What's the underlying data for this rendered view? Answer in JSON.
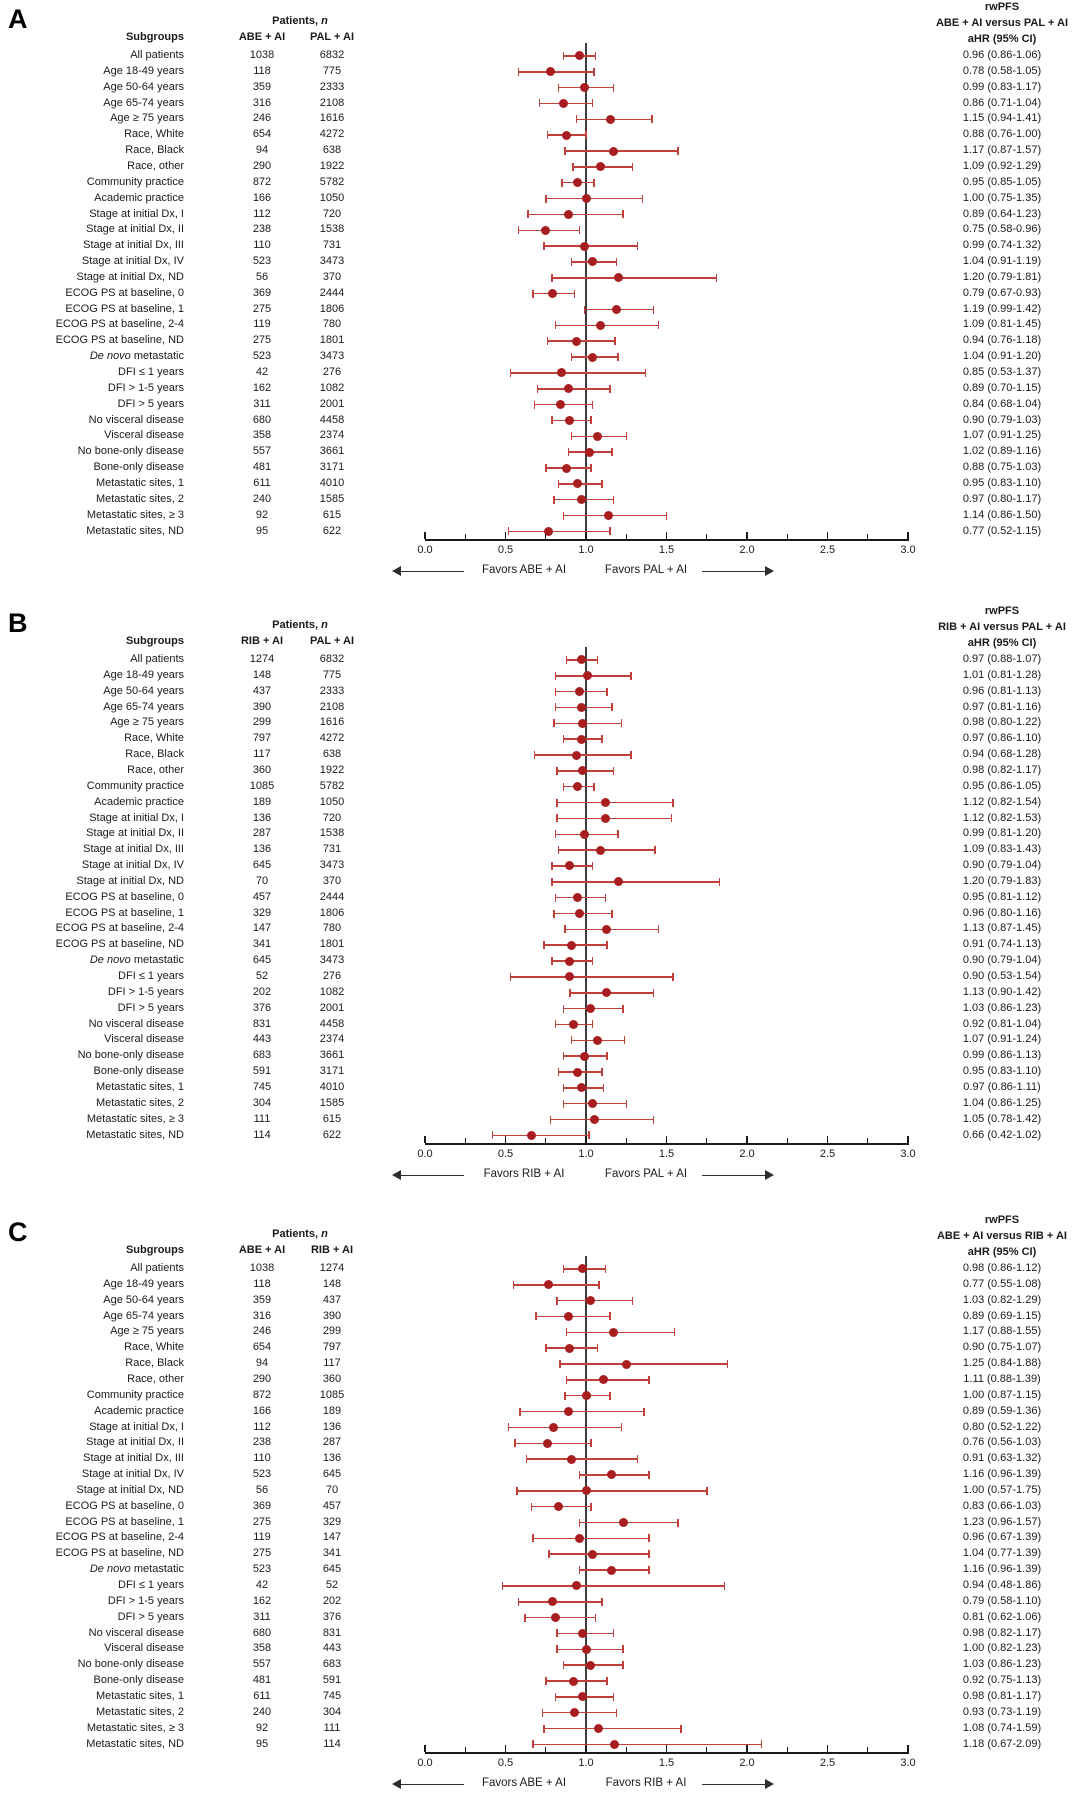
{
  "figure_title": "Forest plots of rwPFS subgroup analyses",
  "colors": {
    "marker": "#a81e20",
    "ci_line": "#c2403a",
    "reference_line": "#3c3c3c",
    "axis": "#1a1a1a",
    "text": "#1a1a1a",
    "arrow": "#2e2e2e"
  },
  "shared_headers": {
    "patients_n_prefix": "Patients, ",
    "patients_n_italic": "n",
    "subgroups": "Subgroups",
    "italic_phrase": "De novo"
  },
  "chart_data": {
    "type": "forest",
    "x_axis": {
      "label": "aHR",
      "min": 0.0,
      "max": 3.0,
      "major_ticks": [
        0.0,
        0.5,
        1.0,
        1.5,
        2.0,
        2.5,
        3.0
      ],
      "tick_labels": [
        "0.0",
        "0.5",
        "1.0",
        "1.5",
        "2.0",
        "2.5",
        "3.0"
      ],
      "minor_tick_step": 0.25,
      "reference_value": 1.0,
      "grid": false
    },
    "row_fields": [
      "subgroup",
      "n_arm1",
      "n_arm2",
      "aHR",
      "ci_low",
      "ci_high"
    ],
    "panels": [
      {
        "label": "A",
        "arm1": "ABE + AI",
        "arm2": "PAL + AI",
        "title_lines": [
          "rwPFS",
          "ABE + AI versus PAL + AI",
          "aHR (95% CI)"
        ],
        "favors_left": "Favors ABE + AI",
        "favors_right": "Favors PAL + AI",
        "rows": [
          [
            "All patients",
            1038,
            6832,
            0.96,
            0.86,
            1.06
          ],
          [
            "Age 18-49 years",
            118,
            775,
            0.78,
            0.58,
            1.05
          ],
          [
            "Age 50-64 years",
            359,
            2333,
            0.99,
            0.83,
            1.17
          ],
          [
            "Age 65-74 years",
            316,
            2108,
            0.86,
            0.71,
            1.04
          ],
          [
            "Age ≥ 75 years",
            246,
            1616,
            1.15,
            0.94,
            1.41
          ],
          [
            "Race, White",
            654,
            4272,
            0.88,
            0.76,
            1.0
          ],
          [
            "Race, Black",
            94,
            638,
            1.17,
            0.87,
            1.57
          ],
          [
            "Race, other",
            290,
            1922,
            1.09,
            0.92,
            1.29
          ],
          [
            "Community practice",
            872,
            5782,
            0.95,
            0.85,
            1.05
          ],
          [
            "Academic practice",
            166,
            1050,
            1.0,
            0.75,
            1.35
          ],
          [
            "Stage at initial Dx, I",
            112,
            720,
            0.89,
            0.64,
            1.23
          ],
          [
            "Stage at initial Dx, II",
            238,
            1538,
            0.75,
            0.58,
            0.96
          ],
          [
            "Stage at initial Dx, III",
            110,
            731,
            0.99,
            0.74,
            1.32
          ],
          [
            "Stage at initial Dx, IV",
            523,
            3473,
            1.04,
            0.91,
            1.19
          ],
          [
            "Stage at initial Dx, ND",
            56,
            370,
            1.2,
            0.79,
            1.81
          ],
          [
            "ECOG PS at baseline, 0",
            369,
            2444,
            0.79,
            0.67,
            0.93
          ],
          [
            "ECOG PS at baseline, 1",
            275,
            1806,
            1.19,
            0.99,
            1.42
          ],
          [
            "ECOG PS at baseline, 2-4",
            119,
            780,
            1.09,
            0.81,
            1.45
          ],
          [
            "ECOG PS at baseline, ND",
            275,
            1801,
            0.94,
            0.76,
            1.18
          ],
          [
            "De novo metastatic",
            523,
            3473,
            1.04,
            0.91,
            1.2
          ],
          [
            "DFI ≤ 1 years",
            42,
            276,
            0.85,
            0.53,
            1.37
          ],
          [
            "DFI > 1-5 years",
            162,
            1082,
            0.89,
            0.7,
            1.15
          ],
          [
            "DFI > 5 years",
            311,
            2001,
            0.84,
            0.68,
            1.04
          ],
          [
            "No visceral disease",
            680,
            4458,
            0.9,
            0.79,
            1.03
          ],
          [
            "Visceral disease",
            358,
            2374,
            1.07,
            0.91,
            1.25
          ],
          [
            "No bone-only disease",
            557,
            3661,
            1.02,
            0.89,
            1.16
          ],
          [
            "Bone-only disease",
            481,
            3171,
            0.88,
            0.75,
            1.03
          ],
          [
            "Metastatic sites, 1",
            611,
            4010,
            0.95,
            0.83,
            1.1
          ],
          [
            "Metastatic sites, 2",
            240,
            1585,
            0.97,
            0.8,
            1.17
          ],
          [
            "Metastatic sites, ≥ 3",
            92,
            615,
            1.14,
            0.86,
            1.5
          ],
          [
            "Metastatic sites, ND",
            95,
            622,
            0.77,
            0.52,
            1.15
          ]
        ]
      },
      {
        "label": "B",
        "arm1": "RIB + AI",
        "arm2": "PAL + AI",
        "title_lines": [
          "rwPFS",
          "RIB + AI versus PAL + AI",
          "aHR (95% CI)"
        ],
        "favors_left": "Favors RIB + AI",
        "favors_right": "Favors PAL + AI",
        "rows": [
          [
            "All patients",
            1274,
            6832,
            0.97,
            0.88,
            1.07
          ],
          [
            "Age 18-49 years",
            148,
            775,
            1.01,
            0.81,
            1.28
          ],
          [
            "Age 50-64 years",
            437,
            2333,
            0.96,
            0.81,
            1.13
          ],
          [
            "Age 65-74 years",
            390,
            2108,
            0.97,
            0.81,
            1.16
          ],
          [
            "Age ≥ 75 years",
            299,
            1616,
            0.98,
            0.8,
            1.22
          ],
          [
            "Race, White",
            797,
            4272,
            0.97,
            0.86,
            1.1
          ],
          [
            "Race, Black",
            117,
            638,
            0.94,
            0.68,
            1.28
          ],
          [
            "Race, other",
            360,
            1922,
            0.98,
            0.82,
            1.17
          ],
          [
            "Community practice",
            1085,
            5782,
            0.95,
            0.86,
            1.05
          ],
          [
            "Academic practice",
            189,
            1050,
            1.12,
            0.82,
            1.54
          ],
          [
            "Stage at initial Dx, I",
            136,
            720,
            1.12,
            0.82,
            1.53
          ],
          [
            "Stage at initial Dx, II",
            287,
            1538,
            0.99,
            0.81,
            1.2
          ],
          [
            "Stage at initial Dx, III",
            136,
            731,
            1.09,
            0.83,
            1.43
          ],
          [
            "Stage at initial Dx, IV",
            645,
            3473,
            0.9,
            0.79,
            1.04
          ],
          [
            "Stage at initial Dx, ND",
            70,
            370,
            1.2,
            0.79,
            1.83
          ],
          [
            "ECOG PS at baseline, 0",
            457,
            2444,
            0.95,
            0.81,
            1.12
          ],
          [
            "ECOG PS at baseline, 1",
            329,
            1806,
            0.96,
            0.8,
            1.16
          ],
          [
            "ECOG PS at baseline, 2-4",
            147,
            780,
            1.13,
            0.87,
            1.45
          ],
          [
            "ECOG PS at baseline, ND",
            341,
            1801,
            0.91,
            0.74,
            1.13
          ],
          [
            "De novo metastatic",
            645,
            3473,
            0.9,
            0.79,
            1.04
          ],
          [
            "DFI ≤ 1 years",
            52,
            276,
            0.9,
            0.53,
            1.54
          ],
          [
            "DFI > 1-5 years",
            202,
            1082,
            1.13,
            0.9,
            1.42
          ],
          [
            "DFI > 5 years",
            376,
            2001,
            1.03,
            0.86,
            1.23
          ],
          [
            "No visceral disease",
            831,
            4458,
            0.92,
            0.81,
            1.04
          ],
          [
            "Visceral disease",
            443,
            2374,
            1.07,
            0.91,
            1.24
          ],
          [
            "No bone-only disease",
            683,
            3661,
            0.99,
            0.86,
            1.13
          ],
          [
            "Bone-only disease",
            591,
            3171,
            0.95,
            0.83,
            1.1
          ],
          [
            "Metastatic sites, 1",
            745,
            4010,
            0.97,
            0.86,
            1.11
          ],
          [
            "Metastatic sites, 2",
            304,
            1585,
            1.04,
            0.86,
            1.25
          ],
          [
            "Metastatic sites, ≥ 3",
            111,
            615,
            1.05,
            0.78,
            1.42
          ],
          [
            "Metastatic sites, ND",
            114,
            622,
            0.66,
            0.42,
            1.02
          ]
        ]
      },
      {
        "label": "C",
        "arm1": "ABE + AI",
        "arm2": "RIB + AI",
        "title_lines": [
          "rwPFS",
          "ABE + AI versus RIB + AI",
          "aHR (95% CI)"
        ],
        "favors_left": "Favors ABE + AI",
        "favors_right": "Favors RIB + AI",
        "rows": [
          [
            "All patients",
            1038,
            1274,
            0.98,
            0.86,
            1.12
          ],
          [
            "Age 18-49 years",
            118,
            148,
            0.77,
            0.55,
            1.08
          ],
          [
            "Age 50-64 years",
            359,
            437,
            1.03,
            0.82,
            1.29
          ],
          [
            "Age 65-74 years",
            316,
            390,
            0.89,
            0.69,
            1.15
          ],
          [
            "Age ≥ 75 years",
            246,
            299,
            1.17,
            0.88,
            1.55
          ],
          [
            "Race, White",
            654,
            797,
            0.9,
            0.75,
            1.07
          ],
          [
            "Race, Black",
            94,
            117,
            1.25,
            0.84,
            1.88
          ],
          [
            "Race, other",
            290,
            360,
            1.11,
            0.88,
            1.39
          ],
          [
            "Community practice",
            872,
            1085,
            1.0,
            0.87,
            1.15
          ],
          [
            "Academic practice",
            166,
            189,
            0.89,
            0.59,
            1.36
          ],
          [
            "Stage at initial Dx, I",
            112,
            136,
            0.8,
            0.52,
            1.22
          ],
          [
            "Stage at initial Dx, II",
            238,
            287,
            0.76,
            0.56,
            1.03
          ],
          [
            "Stage at initial Dx, III",
            110,
            136,
            0.91,
            0.63,
            1.32
          ],
          [
            "Stage at initial Dx, IV",
            523,
            645,
            1.16,
            0.96,
            1.39
          ],
          [
            "Stage at initial Dx, ND",
            56,
            70,
            1.0,
            0.57,
            1.75
          ],
          [
            "ECOG PS at baseline, 0",
            369,
            457,
            0.83,
            0.66,
            1.03
          ],
          [
            "ECOG PS at baseline, 1",
            275,
            329,
            1.23,
            0.96,
            1.57
          ],
          [
            "ECOG PS at baseline, 2-4",
            119,
            147,
            0.96,
            0.67,
            1.39
          ],
          [
            "ECOG PS at baseline, ND",
            275,
            341,
            1.04,
            0.77,
            1.39
          ],
          [
            "De novo metastatic",
            523,
            645,
            1.16,
            0.96,
            1.39
          ],
          [
            "DFI ≤ 1 years",
            42,
            52,
            0.94,
            0.48,
            1.86
          ],
          [
            "DFI > 1-5 years",
            162,
            202,
            0.79,
            0.58,
            1.1
          ],
          [
            "DFI > 5 years",
            311,
            376,
            0.81,
            0.62,
            1.06
          ],
          [
            "No visceral disease",
            680,
            831,
            0.98,
            0.82,
            1.17
          ],
          [
            "Visceral disease",
            358,
            443,
            1.0,
            0.82,
            1.23
          ],
          [
            "No bone-only disease",
            557,
            683,
            1.03,
            0.86,
            1.23
          ],
          [
            "Bone-only disease",
            481,
            591,
            0.92,
            0.75,
            1.13
          ],
          [
            "Metastatic sites, 1",
            611,
            745,
            0.98,
            0.81,
            1.17
          ],
          [
            "Metastatic sites, 2",
            240,
            304,
            0.93,
            0.73,
            1.19
          ],
          [
            "Metastatic sites, ≥ 3",
            92,
            111,
            1.08,
            0.74,
            1.59
          ],
          [
            "Metastatic sites, ND",
            95,
            114,
            1.18,
            0.67,
            2.09
          ]
        ]
      }
    ]
  }
}
